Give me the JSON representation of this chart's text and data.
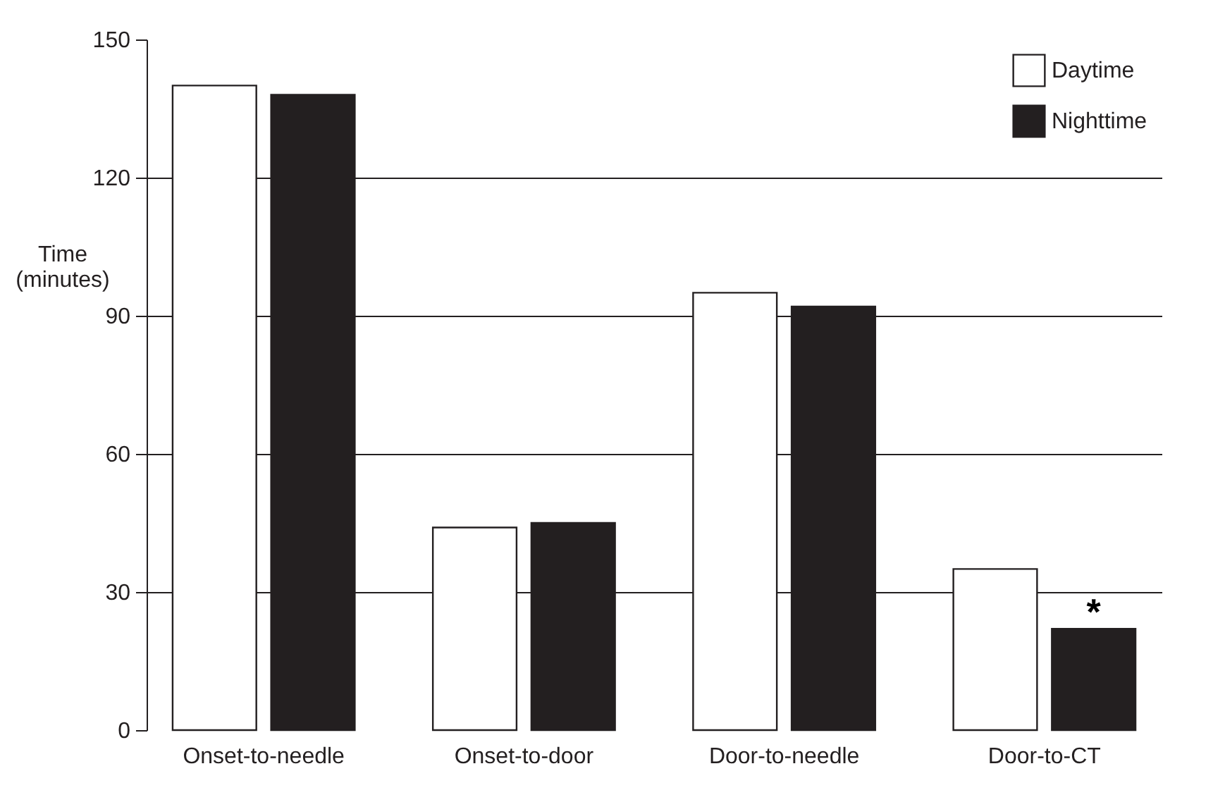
{
  "chart_data": {
    "type": "bar",
    "ylabel": "Time\n(minutes)",
    "categories": [
      "Onset-to-needle",
      "Onset-to-door",
      "Door-to-needle",
      "Door-to-CT"
    ],
    "series": [
      {
        "name": "Daytime",
        "color": "#ffffff",
        "values": [
          140,
          44,
          95,
          35
        ]
      },
      {
        "name": "Nighttime",
        "color": "#231f20",
        "values": [
          138,
          45,
          92,
          22
        ]
      }
    ],
    "ylim": [
      0,
      150
    ],
    "yticks": [
      0,
      30,
      60,
      90,
      120,
      150
    ],
    "grid": "y",
    "legend": "top right",
    "annotations": [
      "*"
    ]
  }
}
